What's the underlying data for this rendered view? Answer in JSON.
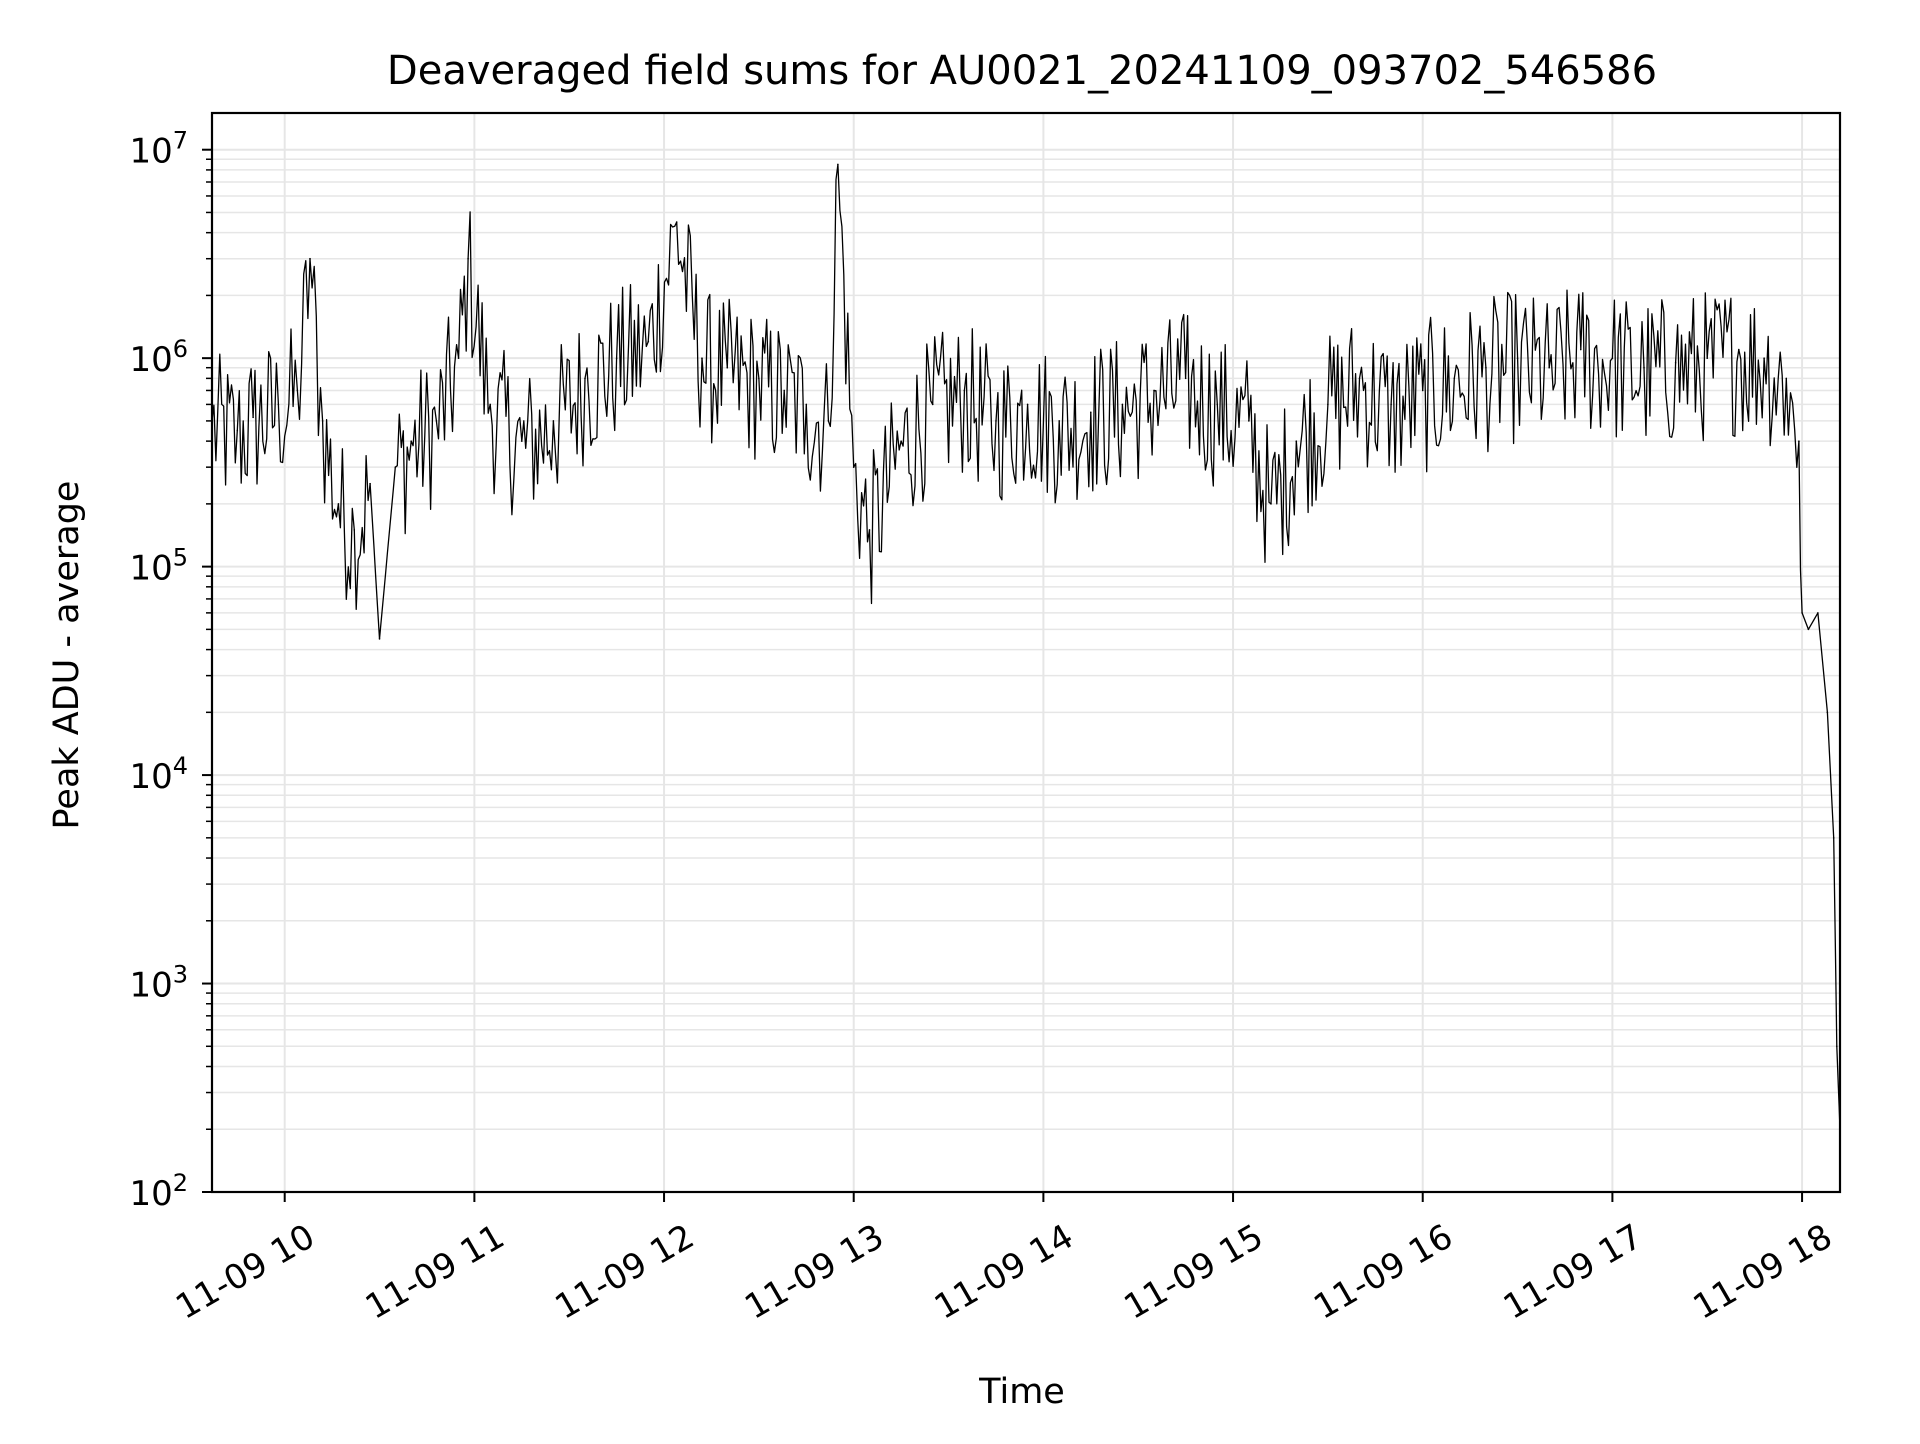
{
  "chart_data": {
    "type": "line",
    "title": "Deaveraged field sums for AU0021_20241109_093702_546586",
    "xlabel": "Time",
    "ylabel": "Peak ADU - average",
    "yscale": "log",
    "ylim": [
      100,
      15000000
    ],
    "xlim": [
      "2024-11-09 09:37",
      "2024-11-09 18:12"
    ],
    "grid": true,
    "x_ticks": [
      {
        "value": "2024-11-09 10:00",
        "label": "11-09 10"
      },
      {
        "value": "2024-11-09 11:00",
        "label": "11-09 11"
      },
      {
        "value": "2024-11-09 12:00",
        "label": "11-09 12"
      },
      {
        "value": "2024-11-09 13:00",
        "label": "11-09 13"
      },
      {
        "value": "2024-11-09 14:00",
        "label": "11-09 14"
      },
      {
        "value": "2024-11-09 15:00",
        "label": "11-09 15"
      },
      {
        "value": "2024-11-09 16:00",
        "label": "11-09 16"
      },
      {
        "value": "2024-11-09 17:00",
        "label": "11-09 17"
      },
      {
        "value": "2024-11-09 18:00",
        "label": "11-09 18"
      }
    ],
    "y_ticks": [
      {
        "value": 100,
        "base": "10",
        "exp": "2"
      },
      {
        "value": 1000,
        "base": "10",
        "exp": "3"
      },
      {
        "value": 10000,
        "base": "10",
        "exp": "4"
      },
      {
        "value": 100000,
        "base": "10",
        "exp": "5"
      },
      {
        "value": 1000000,
        "base": "10",
        "exp": "6"
      },
      {
        "value": 10000000,
        "base": "10",
        "exp": "7"
      }
    ],
    "series": [
      {
        "color": "#000000",
        "x": [
          "2024-11-09 09:37",
          "2024-11-09 09:45",
          "2024-11-09 09:50",
          "2024-11-09 09:58",
          "2024-11-09 10:04",
          "2024-11-09 10:08",
          "2024-11-09 10:12",
          "2024-11-09 10:17",
          "2024-11-09 10:22",
          "2024-11-09 10:27",
          "2024-11-09 10:30",
          "2024-11-09 10:35",
          "2024-11-09 10:40",
          "2024-11-09 10:48",
          "2024-11-09 10:55",
          "2024-11-09 10:58",
          "2024-11-09 11:05",
          "2024-11-09 11:15",
          "2024-11-09 11:25",
          "2024-11-09 11:35",
          "2024-11-09 11:45",
          "2024-11-09 11:55",
          "2024-11-09 12:04",
          "2024-11-09 12:12",
          "2024-11-09 12:20",
          "2024-11-09 12:30",
          "2024-11-09 12:38",
          "2024-11-09 12:45",
          "2024-11-09 12:52",
          "2024-11-09 12:55",
          "2024-11-09 13:00",
          "2024-11-09 13:05",
          "2024-11-09 13:15",
          "2024-11-09 13:25",
          "2024-11-09 13:35",
          "2024-11-09 13:45",
          "2024-11-09 13:55",
          "2024-11-09 14:05",
          "2024-11-09 14:15",
          "2024-11-09 14:25",
          "2024-11-09 14:35",
          "2024-11-09 14:45",
          "2024-11-09 14:55",
          "2024-11-09 15:05",
          "2024-11-09 15:12",
          "2024-11-09 15:20",
          "2024-11-09 15:30",
          "2024-11-09 15:40",
          "2024-11-09 15:50",
          "2024-11-09 16:00",
          "2024-11-09 16:10",
          "2024-11-09 16:20",
          "2024-11-09 16:30",
          "2024-11-09 16:40",
          "2024-11-09 16:50",
          "2024-11-09 17:00",
          "2024-11-09 17:10",
          "2024-11-09 17:20",
          "2024-11-09 17:30",
          "2024-11-09 17:40",
          "2024-11-09 17:48",
          "2024-11-09 17:55",
          "2024-11-09 17:59",
          "2024-11-09 18:00",
          "2024-11-09 18:02",
          "2024-11-09 18:05",
          "2024-11-09 18:08",
          "2024-11-09 18:10",
          "2024-11-09 18:11",
          "2024-11-09 18:12"
        ],
        "y": [
          500000,
          450000,
          520000,
          600000,
          700000,
          3000000,
          500000,
          200000,
          150000,
          250000,
          45000,
          300000,
          400000,
          500000,
          1000000,
          3000000,
          600000,
          400000,
          500000,
          800000,
          1000000,
          1200000,
          4500000,
          1000000,
          900000,
          800000,
          700000,
          600000,
          500000,
          8500000,
          300000,
          150000,
          400000,
          600000,
          700000,
          500000,
          600000,
          500000,
          550000,
          600000,
          700000,
          800000,
          600000,
          500000,
          200000,
          400000,
          600000,
          800000,
          600000,
          700000,
          800000,
          900000,
          1000000,
          900000,
          1100000,
          1000000,
          900000,
          950000,
          1000000,
          1100000,
          1000000,
          800000,
          400000,
          60000,
          50000,
          60000,
          20000,
          5000,
          500,
          200
        ]
      }
    ]
  }
}
